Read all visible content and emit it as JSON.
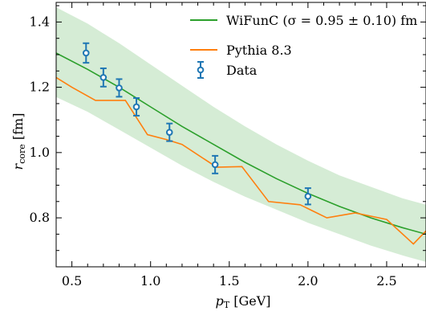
{
  "chart_data": {
    "type": "line",
    "xlabel": {
      "main": "p",
      "sub": "T",
      "unit": " [GeV]"
    },
    "ylabel": {
      "main": "r",
      "sub": "core",
      "unit": " [fm]"
    },
    "xlim": [
      0.4,
      2.75
    ],
    "ylim": [
      0.65,
      1.46
    ],
    "xticks": [
      "0.5",
      "1.0",
      "1.5",
      "2.0",
      "2.5"
    ],
    "yticks": [
      "0.8",
      "1.0",
      "1.2",
      "1.4"
    ],
    "grid": false,
    "legend_position": "top-right",
    "series": [
      {
        "name": "WiFunC (σ = 0.95 ± 0.10) fm",
        "kind": "line",
        "color": "#2ca02c",
        "x": [
          0.4,
          0.6,
          0.8,
          1.0,
          1.2,
          1.4,
          1.6,
          1.8,
          2.0,
          2.2,
          2.4,
          2.6,
          2.75
        ],
        "y": [
          1.305,
          1.255,
          1.2,
          1.14,
          1.08,
          1.025,
          0.97,
          0.92,
          0.875,
          0.835,
          0.8,
          0.77,
          0.75
        ],
        "band_upper": [
          1.445,
          1.395,
          1.335,
          1.27,
          1.205,
          1.14,
          1.08,
          1.025,
          0.975,
          0.93,
          0.895,
          0.86,
          0.84
        ],
        "band_lower": [
          1.17,
          1.125,
          1.07,
          1.015,
          0.96,
          0.91,
          0.865,
          0.825,
          0.785,
          0.75,
          0.715,
          0.685,
          0.665
        ]
      },
      {
        "name": "Pythia 8.3",
        "kind": "line",
        "color": "#ff7f0e",
        "x": [
          0.4,
          0.5,
          0.65,
          0.84,
          0.98,
          1.1,
          1.2,
          1.42,
          1.58,
          1.75,
          1.95,
          2.12,
          2.3,
          2.5,
          2.67,
          2.75
        ],
        "y": [
          1.23,
          1.2,
          1.16,
          1.16,
          1.055,
          1.04,
          1.025,
          0.955,
          0.957,
          0.85,
          0.84,
          0.8,
          0.815,
          0.795,
          0.72,
          0.76
        ]
      },
      {
        "name": "Data",
        "kind": "errorbar",
        "color": "#1f77b4",
        "x": [
          0.59,
          0.7,
          0.8,
          0.91,
          1.12,
          1.41,
          2.0
        ],
        "y": [
          1.305,
          1.23,
          1.198,
          1.14,
          1.062,
          0.963,
          0.866
        ],
        "yerr": [
          0.03,
          0.028,
          0.027,
          0.027,
          0.027,
          0.027,
          0.025
        ]
      }
    ]
  }
}
